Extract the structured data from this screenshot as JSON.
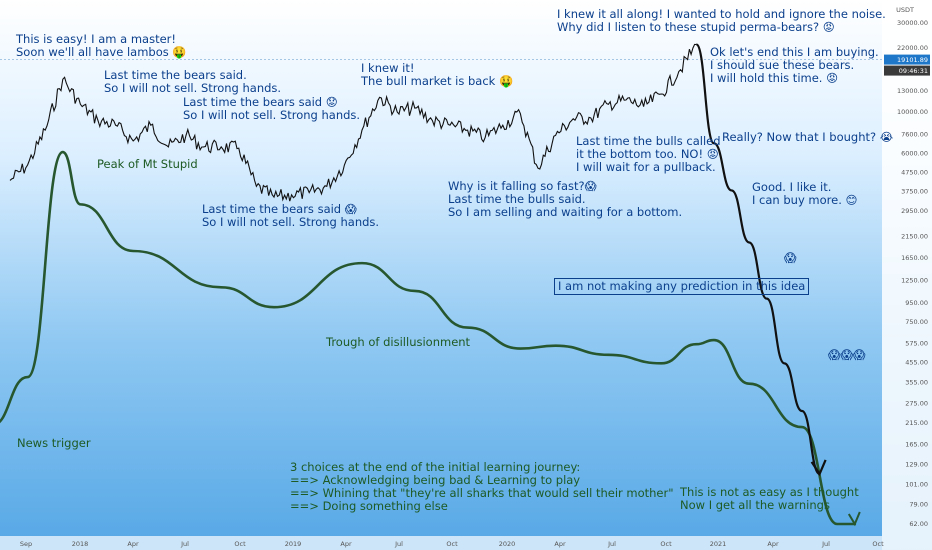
{
  "chart_data": {
    "type": "line",
    "price_axis": {
      "label": "USDT",
      "ticks": [
        30000.0,
        22000.0,
        17000.0,
        13000.0,
        10000.0,
        7600.0,
        6000.0,
        4750.0,
        3750.0,
        2950.0,
        2150.0,
        1650.0,
        1250.0,
        950.0,
        750.0,
        575.0,
        455.0,
        355.0,
        275.0,
        215.0,
        165.0,
        129.0,
        101.0,
        79.0,
        62.0
      ],
      "tick_labels": [
        "30000.00",
        "22000.00",
        "17000.00",
        "13000.00",
        "10000.00",
        "7600.00",
        "6000.00",
        "4750.00",
        "3750.00",
        "2950.00",
        "2150.00",
        "1650.00",
        "1250.00",
        "950.00",
        "750.00",
        "575.00",
        "455.00",
        "355.00",
        "275.00",
        "215.00",
        "165.00",
        "129.00",
        "101.00",
        "79.00",
        "62.00"
      ],
      "scale": "log",
      "current_price": "19101.89",
      "current_time": "09:46:31"
    },
    "time_axis": {
      "tick_labels": [
        "Sep",
        "2018",
        "Apr",
        "Jul",
        "Oct",
        "2019",
        "Apr",
        "Jul",
        "Oct",
        "2020",
        "Apr",
        "Jul",
        "Oct",
        "2021",
        "Apr",
        "Jul",
        "Oct"
      ]
    },
    "series": [
      {
        "kind": "price",
        "x": [
          "2017-09",
          "2017-10",
          "2017-11",
          "2017-12",
          "2018-01",
          "2018-02",
          "2018-03",
          "2018-04",
          "2018-05",
          "2018-06",
          "2018-07",
          "2018-08",
          "2018-09",
          "2018-10",
          "2018-11",
          "2018-12",
          "2019-01",
          "2019-02",
          "2019-03",
          "2019-04",
          "2019-05",
          "2019-06",
          "2019-07",
          "2019-08",
          "2019-09",
          "2019-10",
          "2019-11",
          "2019-12",
          "2020-01",
          "2020-02",
          "2020-03",
          "2020-04",
          "2020-05",
          "2020-06",
          "2020-07",
          "2020-08",
          "2020-09",
          "2020-10",
          "2020-11",
          "2020-12"
        ],
        "values": [
          4300,
          5200,
          8000,
          15000,
          11000,
          9000,
          8500,
          7000,
          8500,
          6500,
          7500,
          6500,
          6500,
          6400,
          4000,
          3500,
          3600,
          3700,
          4000,
          5200,
          8000,
          12000,
          10000,
          10500,
          9000,
          8500,
          8000,
          7300,
          8500,
          9800,
          5000,
          7500,
          9200,
          9300,
          11000,
          11600,
          10700,
          12500,
          16500,
          23000
        ]
      },
      {
        "kind": "projection",
        "x": [
          "2020-12",
          "2021-01",
          "2021-02",
          "2021-03",
          "2021-04",
          "2021-05",
          "2021-06",
          "2021-07"
        ],
        "values": [
          23000,
          6800,
          3800,
          2000,
          1000,
          450,
          250,
          115
        ]
      },
      {
        "kind": "hype-cycle",
        "x": [
          "2017-08",
          "2017-10",
          "2017-12",
          "2018-01",
          "2018-04",
          "2018-09",
          "2018-12",
          "2019-05",
          "2019-08",
          "2019-11",
          "2020-02",
          "2020-04",
          "2020-07",
          "2020-10",
          "2020-12",
          "2021-01",
          "2021-03",
          "2021-06",
          "2021-08",
          "2021-09"
        ],
        "values": [
          210,
          380,
          6100,
          3200,
          1800,
          1150,
          900,
          1550,
          1100,
          700,
          540,
          560,
          500,
          450,
          570,
          600,
          350,
          205,
          62,
          62
        ]
      }
    ]
  },
  "annotations": {
    "master": "This is easy! I am a master!\nSoon we'll all have lambos 🤑",
    "bears1": "Last time the bears said.\nSo I will not sell. Strong hands.",
    "bears2": "Last time the bears said 😟\nSo I will not sell. Strong hands.",
    "bull_back": "I knew it!\nThe bull market is back 🤑",
    "knew_all_along": "I knew it all along! I wanted to hold and ignore the noise.\nWhy did I listen to these stupid perma-bears? 😡",
    "buying": "Ok let's end this I am buying.\nI should sue these bears.\nI will hold this time. 😡",
    "bulls_called": "Last time the bulls called\nit the bottom too. NO! 😡\nI will wait for a pullback.",
    "bought": "Really? Now that I bought? 😭",
    "like_it": "Good. I like it.\nI can buy more. 😊",
    "falling": "Why is it falling so fast?😱\nLast time the bulls said.\nSo I am selling and waiting for a bottom.",
    "bears3": "Last time the bears said 😱\nSo I will not sell. Strong hands.",
    "peak": "Peak of Mt Stupid",
    "trough": "Trough of disillusionment",
    "news": "News trigger",
    "no_prediction": "I am not making any prediction in this idea",
    "choices": "3 choices at the end of the initial learning journey:\n==> Acknowledging being bad & Learning to play\n==> Whining that \"they're all sharks that would sell their mother\"\n==> Doing something else",
    "not_easy": "This is not as easy as I thought\nNow I get all the warnings",
    "scream_single": "😱",
    "scream_triple": "😱😱😱"
  },
  "colors": {
    "price_line": "#111111",
    "hype_line": "#27572f",
    "text_blue": "#0b3f8c",
    "text_green": "#1e5a24",
    "price_tag": "#1f77c9",
    "time_tag": "#3a3a3a"
  }
}
